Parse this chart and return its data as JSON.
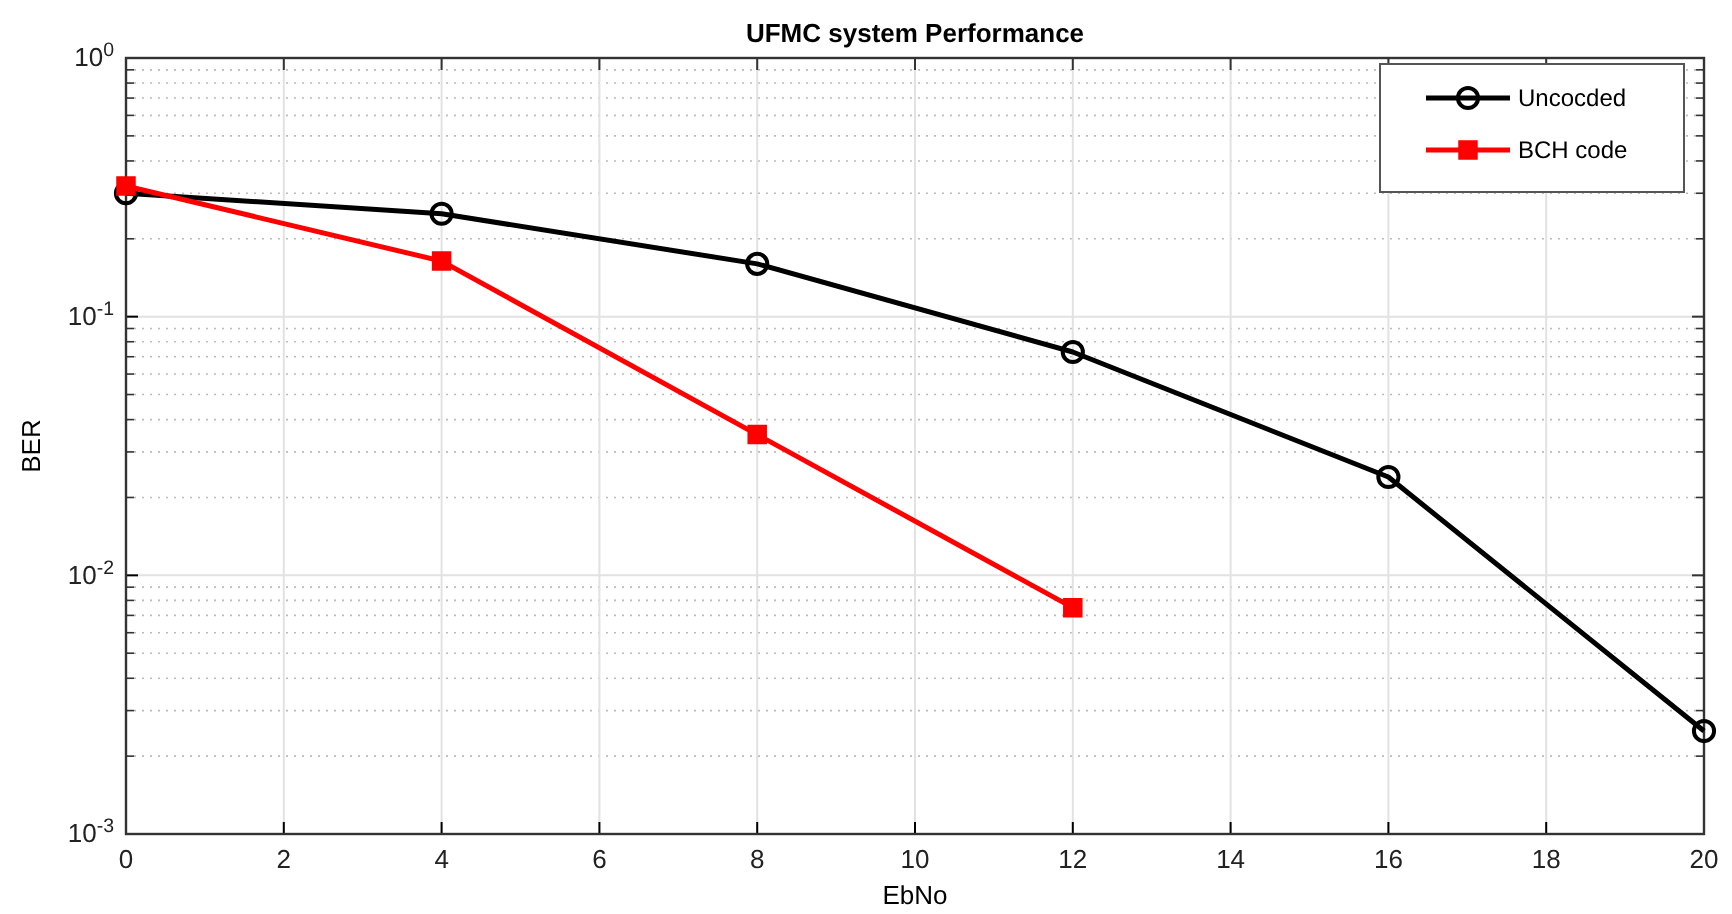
{
  "chart_data": {
    "type": "line",
    "title": "UFMC system Performance",
    "xlabel": "EbNo",
    "ylabel": "BER",
    "x": [
      0,
      4,
      8,
      12,
      16,
      20
    ],
    "series": [
      {
        "name": "Uncocded",
        "color": "#000000",
        "marker": "circle",
        "values": [
          0.3,
          0.25,
          0.16,
          0.073,
          0.024,
          0.0025
        ]
      },
      {
        "name": "BCH code",
        "color": "#ff0000",
        "marker": "square",
        "values": [
          0.32,
          0.164,
          0.035,
          0.0075,
          null,
          null
        ]
      }
    ],
    "log": "y",
    "xlim": [
      0,
      20
    ],
    "xticks": [
      0,
      2,
      4,
      6,
      8,
      10,
      12,
      14,
      16,
      18,
      20
    ],
    "ylim": [
      0.001,
      1
    ],
    "yticks": [
      {
        "value": 0.001,
        "label": "10$^{-3}$"
      },
      {
        "value": 0.01,
        "label": "10$^{-2}$"
      },
      {
        "value": 0.1,
        "label": "10$^{-1}$"
      },
      {
        "value": 1,
        "label": "10$^{0}$"
      }
    ],
    "grid": true,
    "legend": "top right",
    "line_style": "solid"
  }
}
